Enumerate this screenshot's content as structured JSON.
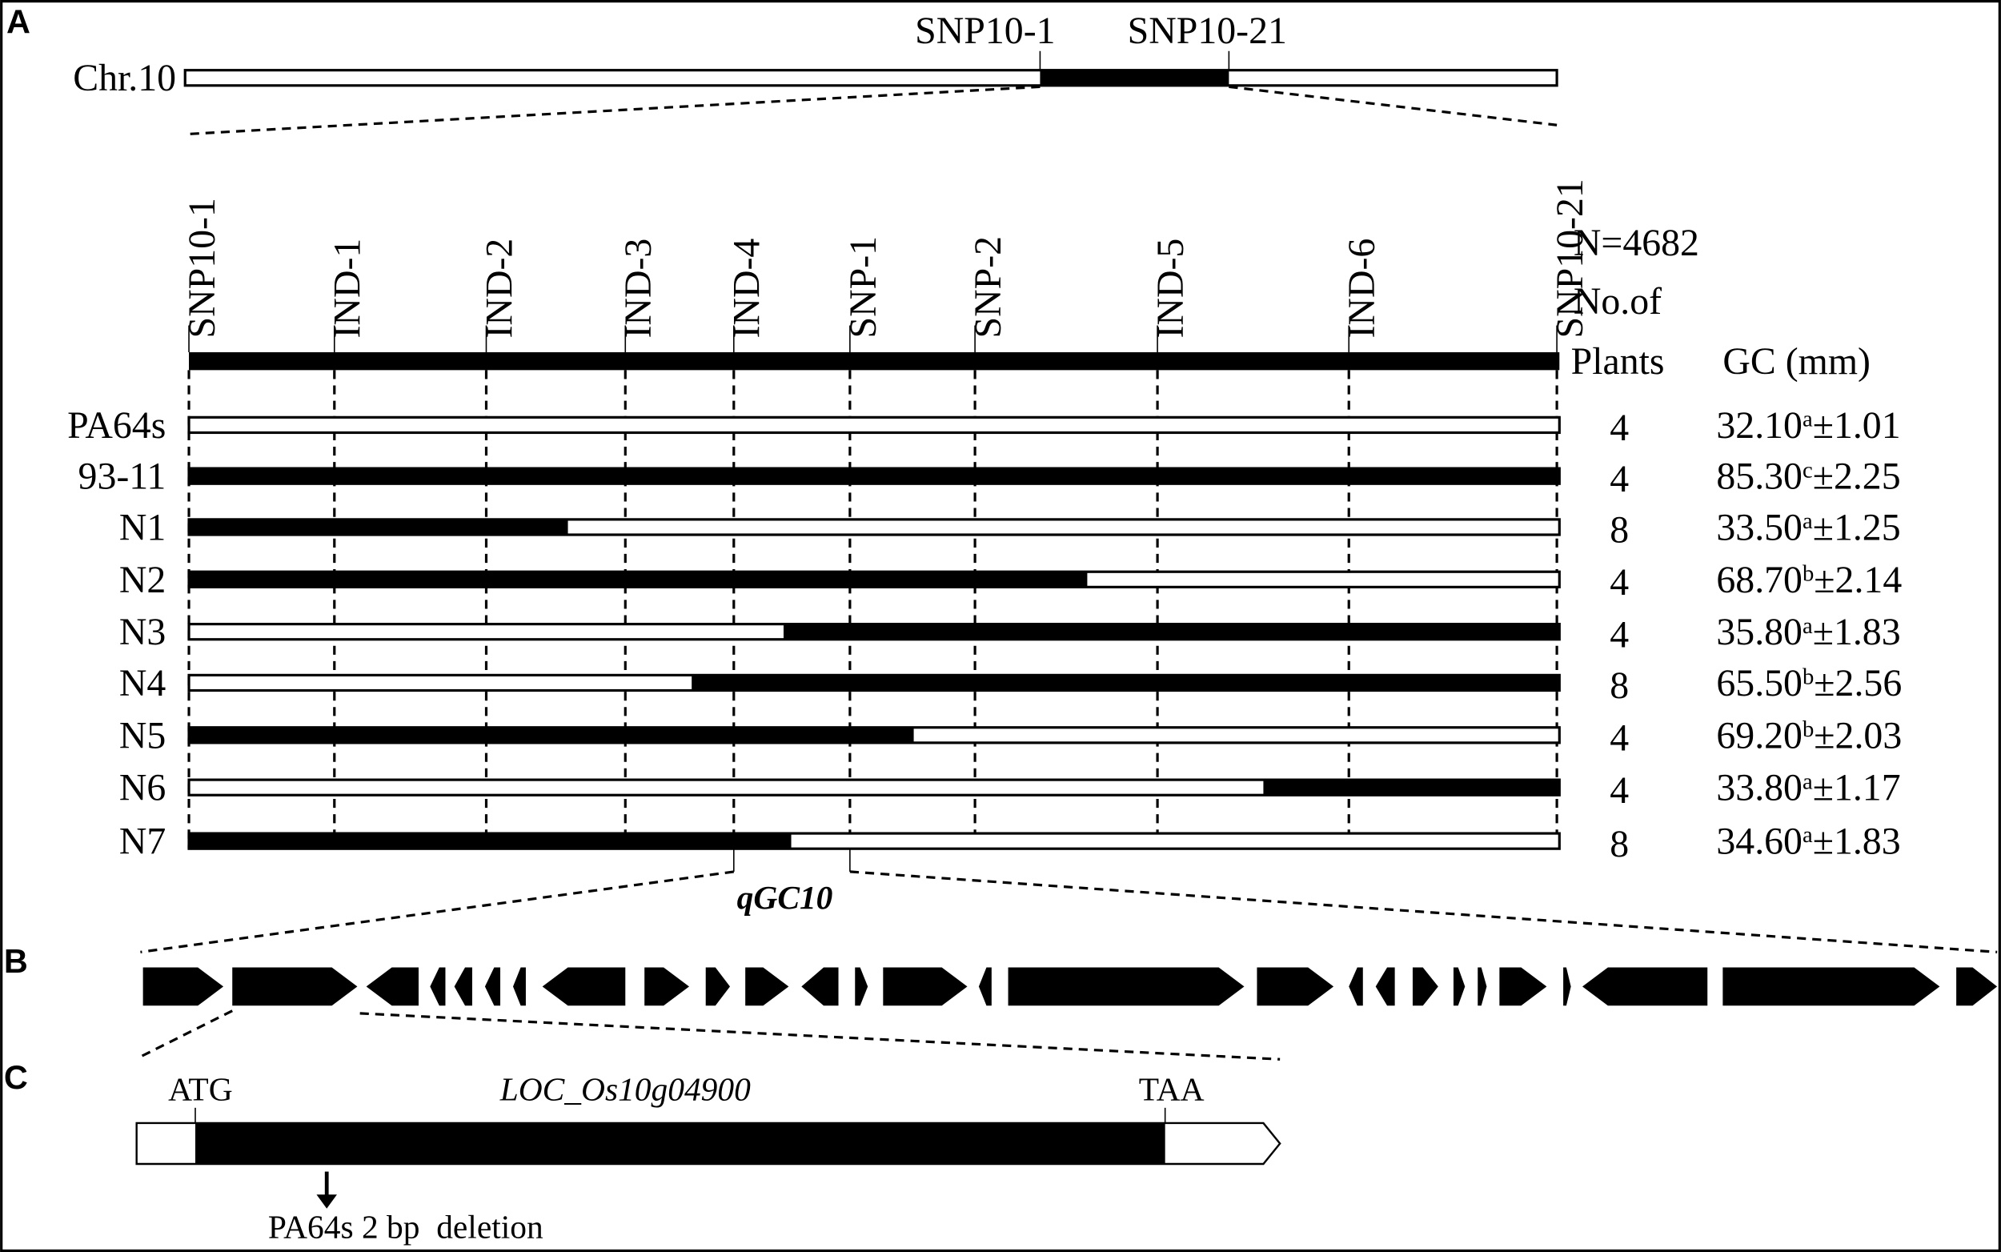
{
  "panels": {
    "a": "A",
    "b": "B",
    "c": "C"
  },
  "chromosome": {
    "label": "Chr.10",
    "left_marker": "SNP10-1",
    "right_marker": "SNP10-21"
  },
  "markers": [
    "SNP10-1",
    "IND-1",
    "IND-2",
    "IND-3",
    "IND-4",
    "SNP-1",
    "SNP-2",
    "IND-5",
    "IND-6",
    "SNP10-21"
  ],
  "header": {
    "population": "N=4682",
    "plants_line1": "No.of",
    "plants_line2": "Plants",
    "gc": "GC (mm)"
  },
  "rows": [
    {
      "name": "PA64s",
      "plants": "4",
      "mean": "32.10",
      "letter": "a",
      "sd": "±1.01"
    },
    {
      "name": "93-11",
      "plants": "4",
      "mean": "85.30",
      "letter": "c",
      "sd": "±2.25"
    },
    {
      "name": "N1",
      "plants": "8",
      "mean": "33.50",
      "letter": "a",
      "sd": "±1.25"
    },
    {
      "name": "N2",
      "plants": "4",
      "mean": "68.70",
      "letter": "b",
      "sd": "±2.14"
    },
    {
      "name": "N3",
      "plants": "4",
      "mean": "35.80",
      "letter": "a",
      "sd": "±1.83"
    },
    {
      "name": "N4",
      "plants": "8",
      "mean": "65.50",
      "letter": "b",
      "sd": "±2.56"
    },
    {
      "name": "N5",
      "plants": "4",
      "mean": "69.20",
      "letter": "b",
      "sd": "±2.03"
    },
    {
      "name": "N6",
      "plants": "4",
      "mean": "33.80",
      "letter": "a",
      "sd": "±1.17"
    },
    {
      "name": "N7",
      "plants": "8",
      "mean": "34.60",
      "letter": "a",
      "sd": "±1.83"
    }
  ],
  "qtl": "qGC10",
  "gene": {
    "start": "ATG",
    "name": "LOC_Os10g04900",
    "stop": "TAA",
    "note": "PA64s 2 bp  deletion"
  }
}
